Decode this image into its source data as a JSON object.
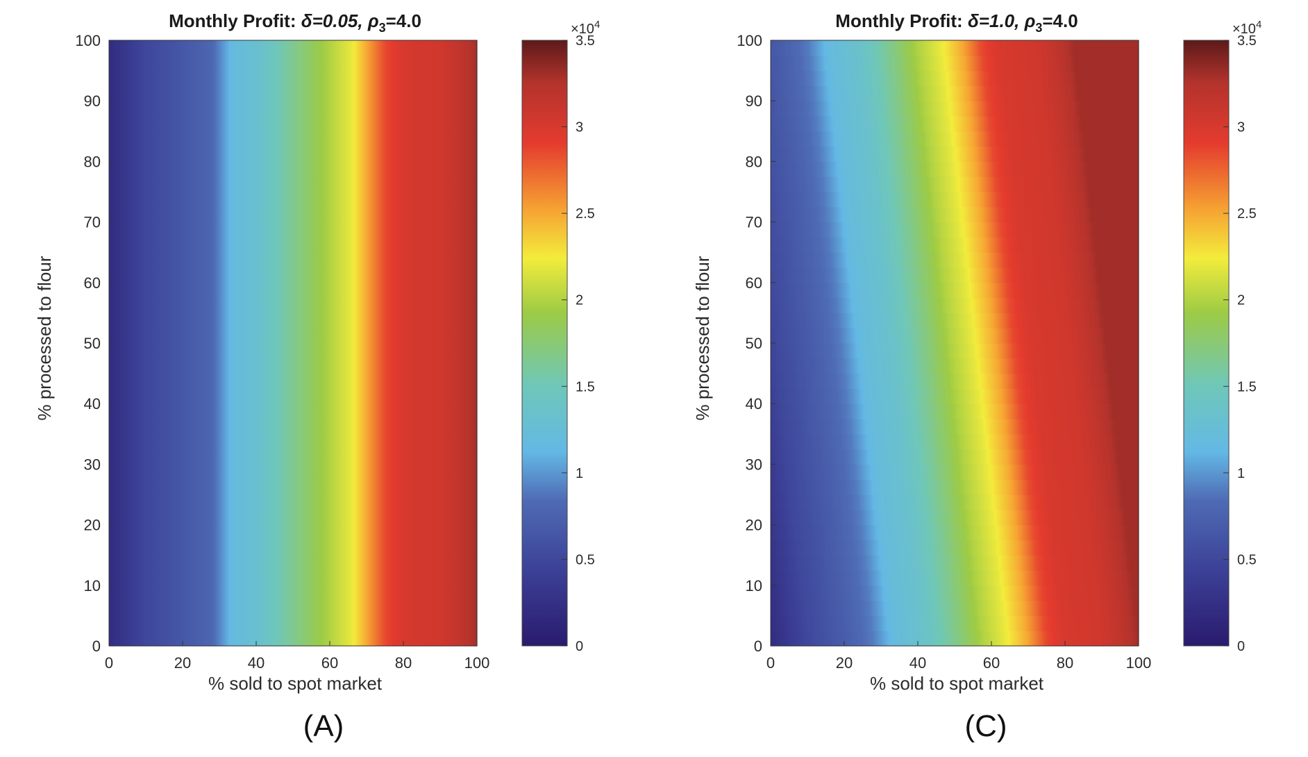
{
  "chart_data": [
    {
      "type": "heatmap",
      "panel_label": "(A)",
      "title_prefix": "Monthly Profit: ",
      "title_delta": "δ=0.05, ",
      "title_rho": "ρ",
      "title_rho_sub": "3",
      "title_suffix": "=4.0",
      "xlabel": "% sold to spot market",
      "ylabel": "% processed to flour",
      "xlim": [
        0,
        100
      ],
      "ylim": [
        0,
        100
      ],
      "x_ticks": [
        0,
        20,
        40,
        60,
        80,
        100
      ],
      "y_ticks": [
        0,
        10,
        20,
        30,
        40,
        50,
        60,
        70,
        80,
        90,
        100
      ],
      "colorbar": {
        "range": [
          0,
          35000
        ],
        "ticks": [
          0,
          0.5,
          1,
          1.5,
          2,
          2.5,
          3,
          3.5
        ],
        "tick_labels": [
          "0",
          "0.5",
          "1",
          "1.5",
          "2",
          "2.5",
          "3",
          "3.5"
        ],
        "multiplier": "×10",
        "multiplier_exp": "4",
        "colormap": "jet"
      },
      "slope": 0.0,
      "profile": [
        {
          "x": 0,
          "v": 2000
        },
        {
          "x": 10,
          "v": 5000
        },
        {
          "x": 20,
          "v": 6500
        },
        {
          "x": 28,
          "v": 8000
        },
        {
          "x": 34,
          "v": 12000
        },
        {
          "x": 40,
          "v": 13000
        },
        {
          "x": 50,
          "v": 16500
        },
        {
          "x": 60,
          "v": 20000
        },
        {
          "x": 66,
          "v": 22000
        },
        {
          "x": 70,
          "v": 25000
        },
        {
          "x": 75,
          "v": 28500
        },
        {
          "x": 80,
          "v": 30000
        },
        {
          "x": 90,
          "v": 30500
        },
        {
          "x": 95,
          "v": 31500
        },
        {
          "x": 100,
          "v": 33000
        }
      ]
    },
    {
      "type": "heatmap",
      "panel_label": "(C)",
      "title_prefix": "Monthly Profit: ",
      "title_delta": "δ=1.0, ",
      "title_rho": "ρ",
      "title_rho_sub": "3",
      "title_suffix": "=4.0",
      "xlabel": "% sold to spot market",
      "ylabel": "% processed to flour",
      "xlim": [
        0,
        100
      ],
      "ylim": [
        0,
        100
      ],
      "x_ticks": [
        0,
        20,
        40,
        60,
        80,
        100
      ],
      "y_ticks": [
        0,
        10,
        20,
        30,
        40,
        50,
        60,
        70,
        80,
        90,
        100
      ],
      "colorbar": {
        "range": [
          0,
          35000
        ],
        "ticks": [
          0,
          0.5,
          1,
          1.5,
          2,
          2.5,
          3,
          3.5
        ],
        "tick_labels": [
          "0",
          "0.5",
          "1",
          "1.5",
          "2",
          "2.5",
          "3",
          "3.5"
        ],
        "multiplier": "×10",
        "multiplier_exp": "4",
        "colormap": "jet"
      },
      "slope": 0.18,
      "profile": [
        {
          "x": 0,
          "v": 2000
        },
        {
          "x": 10,
          "v": 5000
        },
        {
          "x": 20,
          "v": 7000
        },
        {
          "x": 28,
          "v": 9000
        },
        {
          "x": 34,
          "v": 12000
        },
        {
          "x": 42,
          "v": 13500
        },
        {
          "x": 50,
          "v": 16500
        },
        {
          "x": 58,
          "v": 20000
        },
        {
          "x": 64,
          "v": 22000
        },
        {
          "x": 70,
          "v": 25000
        },
        {
          "x": 75,
          "v": 28500
        },
        {
          "x": 80,
          "v": 30000
        },
        {
          "x": 90,
          "v": 30500
        },
        {
          "x": 95,
          "v": 31500
        },
        {
          "x": 100,
          "v": 33000
        }
      ]
    }
  ]
}
